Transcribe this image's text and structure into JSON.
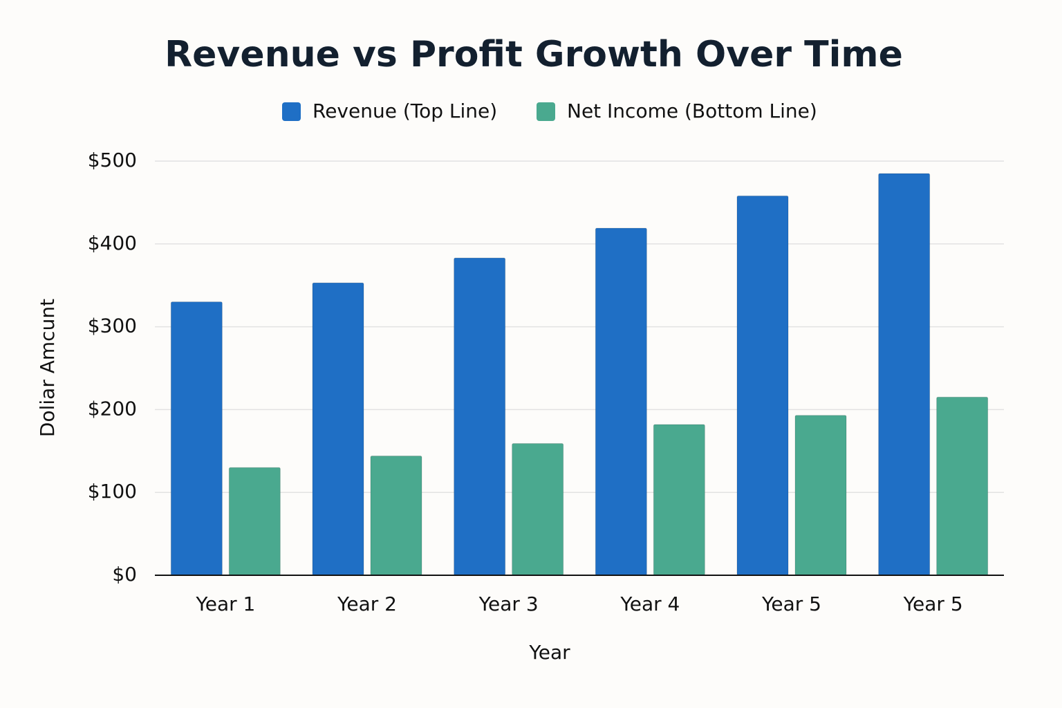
{
  "chart_data": {
    "type": "bar",
    "title": "Revenue vs Profit Growth Over Time",
    "x_label": "Year",
    "y_label": "Doliar Amcunt",
    "categories": [
      "Year 1",
      "Year 2",
      "Year 3",
      "Year 4",
      "Year 5",
      "Year 5"
    ],
    "series": [
      {
        "name": "Revenue (Top Line)",
        "color": "#1f6fc5",
        "values": [
          330,
          353,
          383,
          419,
          458,
          485
        ]
      },
      {
        "name": "Net Income (Bottom Line)",
        "color": "#4aa98f",
        "values": [
          130,
          144,
          159,
          182,
          193,
          215
        ]
      }
    ],
    "ylim": [
      0,
      500
    ],
    "yticks": [
      {
        "value": 0,
        "label": "$0"
      },
      {
        "value": 100,
        "label": "$100"
      },
      {
        "value": 200,
        "label": "$200"
      },
      {
        "value": 300,
        "label": "$300"
      },
      {
        "value": 400,
        "label": "$400"
      },
      {
        "value": 500,
        "label": "$500"
      }
    ],
    "grid": true,
    "legend": "top"
  }
}
